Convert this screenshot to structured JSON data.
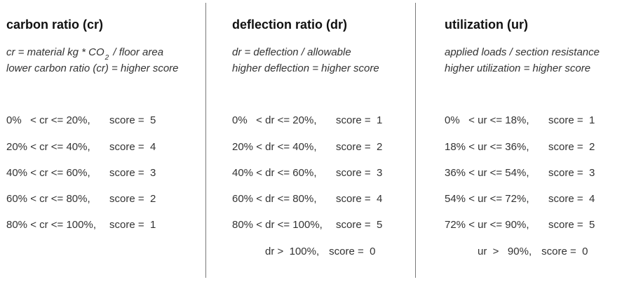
{
  "columns": {
    "carbon": {
      "title": "carbon ratio (cr)",
      "formula_pre": "cr  = material kg * CO",
      "formula_sub": "2",
      "formula_post": " / floor area",
      "formula_line2": "lower carbon ratio (cr) =  higher score",
      "rows": [
        {
          "range": "0%   < cr <= 20%,",
          "score": "score =  5"
        },
        {
          "range": "20% < cr <= 40%,",
          "score": "score =  4"
        },
        {
          "range": "40% < cr <= 60%,",
          "score": "score =  3"
        },
        {
          "range": "60% < cr <= 80%,",
          "score": "score =  2"
        },
        {
          "range": "80% < cr <= 100%,",
          "score": "score =  1"
        }
      ]
    },
    "deflection": {
      "title": "deflection ratio (dr)",
      "formula_line1": "dr = deflection / allowable",
      "formula_line2": "higher deflection = higher score",
      "rows": [
        {
          "range": "0%   < dr <= 20%,",
          "score": "score =  1"
        },
        {
          "range": "20% < dr <= 40%,",
          "score": "score =  2"
        },
        {
          "range": "40% < dr <= 60%,",
          "score": "score =  3"
        },
        {
          "range": "60% < dr <= 80%,",
          "score": "score =  4"
        },
        {
          "range": "80% < dr <= 100%,",
          "score": "score =  5"
        },
        {
          "range": "dr >  100%,",
          "score": "score =  0"
        }
      ]
    },
    "utilization": {
      "title": "utilization (ur)",
      "formula_line1": "applied loads / section resistance",
      "formula_line2": "higher utilization = higher score",
      "rows": [
        {
          "range": "0%   < ur <= 18%,",
          "score": "score =  1"
        },
        {
          "range": "18% < ur <= 36%,",
          "score": "score =  2"
        },
        {
          "range": "36% < ur <= 54%,",
          "score": "score =  3"
        },
        {
          "range": "54% < ur <= 72%,",
          "score": "score =  4"
        },
        {
          "range": "72% < ur <= 90%,",
          "score": "score =  5"
        },
        {
          "range": "ur  >   90%,",
          "score": "score =  0"
        }
      ]
    }
  }
}
